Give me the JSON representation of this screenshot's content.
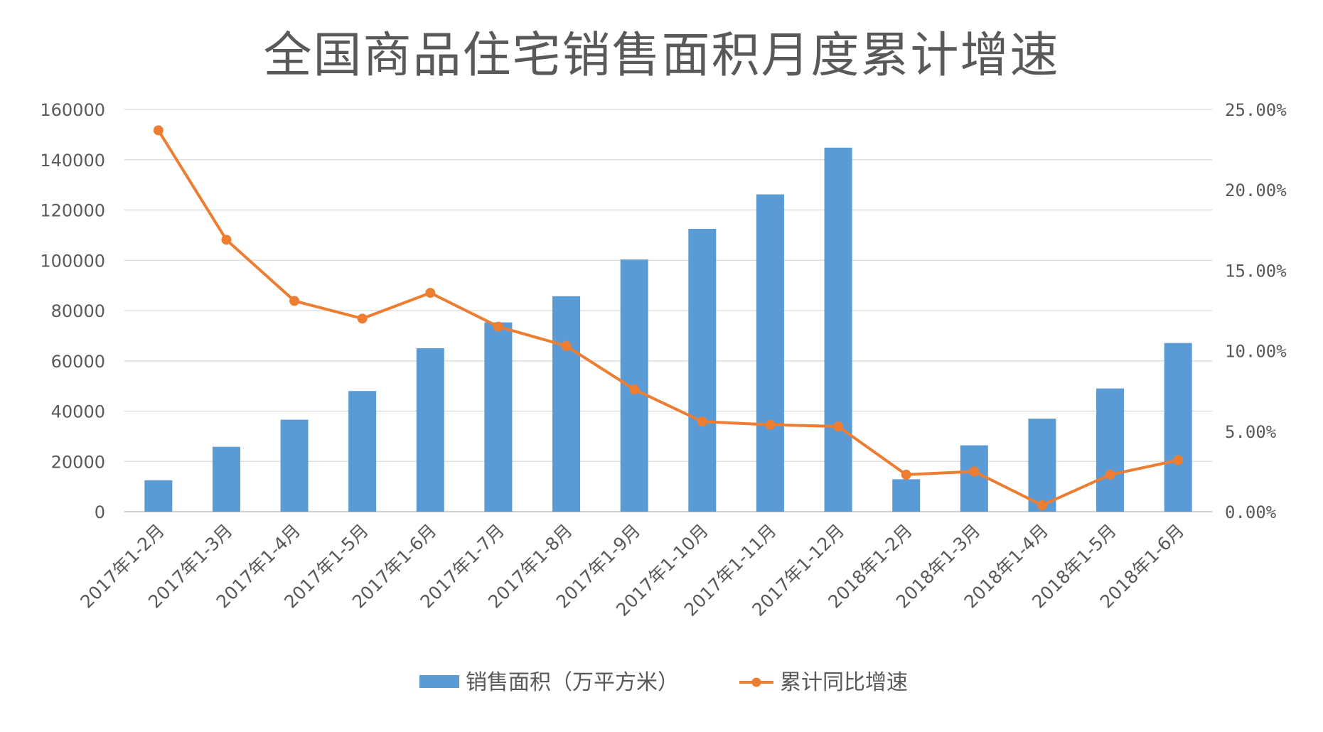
{
  "chart_data": {
    "type": "bar",
    "title": "全国商品住宅销售面积月度累计增速",
    "categories": [
      "2017年1-2月",
      "2017年1-3月",
      "2017年1-4月",
      "2017年1-5月",
      "2017年1-6月",
      "2017年1-7月",
      "2017年1-8月",
      "2017年1-9月",
      "2017年1-10月",
      "2017年1-11月",
      "2017年1-12月",
      "2018年1-2月",
      "2018年1-3月",
      "2018年1-4月",
      "2018年1-5月",
      "2018年1-6月"
    ],
    "series": [
      {
        "name": "销售面积（万平方米）",
        "type": "bar",
        "axis": "left",
        "color": "#5b9bd5",
        "values": [
          12500,
          25800,
          36600,
          48000,
          65000,
          75300,
          85700,
          100300,
          112500,
          126200,
          144800,
          12900,
          26400,
          37000,
          49000,
          67100
        ]
      },
      {
        "name": "累计同比增速",
        "type": "line",
        "axis": "right",
        "color": "#ed7d31",
        "values": [
          23.7,
          16.9,
          13.1,
          12.0,
          13.6,
          11.5,
          10.3,
          7.6,
          5.6,
          5.4,
          5.3,
          2.3,
          2.5,
          0.4,
          2.3,
          3.2
        ]
      }
    ],
    "y_left": {
      "ylim": [
        0,
        160000
      ],
      "ticks": [
        "0",
        "20000",
        "40000",
        "60000",
        "80000",
        "100000",
        "120000",
        "140000",
        "160000"
      ]
    },
    "y_right": {
      "ylim": [
        0,
        25
      ],
      "ticks": [
        "0.00%",
        "5.00%",
        "10.00%",
        "15.00%",
        "20.00%",
        "25.00%"
      ]
    },
    "grid": true,
    "legend_position": "bottom",
    "xlabel": "",
    "ylabel": ""
  }
}
